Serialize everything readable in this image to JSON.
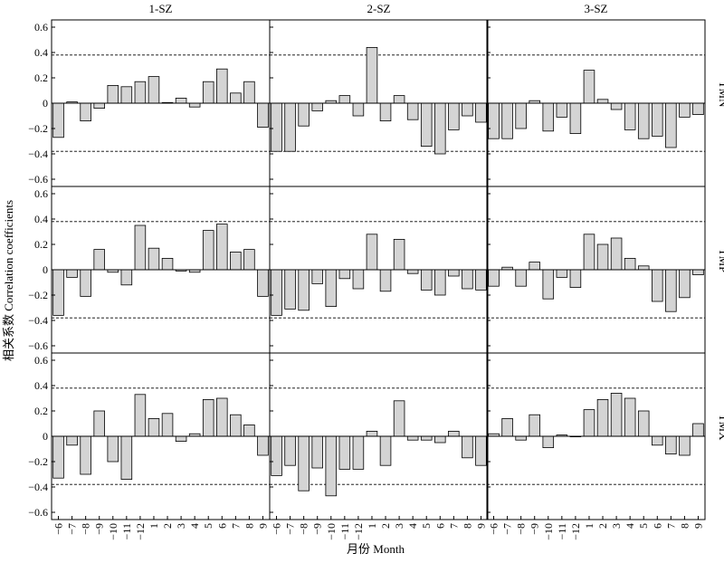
{
  "chart_data": {
    "type": "bar",
    "columns": [
      "1-SZ",
      "2-SZ",
      "3-SZ"
    ],
    "rows": [
      "TMN",
      "TMP",
      "TMX"
    ],
    "categories": [
      "−6",
      "−7",
      "−8",
      "−9",
      "−10",
      "−11",
      "−12",
      "1",
      "2",
      "3",
      "4",
      "5",
      "6",
      "7",
      "8",
      "9"
    ],
    "ylim": [
      -0.6,
      0.6
    ],
    "yticks": [
      "0.6",
      "0.4",
      "0.2",
      "0",
      "−0.2",
      "−0.4",
      "−0.6"
    ],
    "significance": [
      0.38,
      -0.38
    ],
    "xlabel": "月份 Month",
    "ylabel": "相关系数 Correlation coefficients",
    "panels": [
      {
        "column": "1-SZ",
        "row": "TMN",
        "values": [
          -0.27,
          0.01,
          -0.14,
          -0.04,
          0.14,
          0.13,
          0.17,
          0.21,
          0.005,
          0.04,
          -0.03,
          0.17,
          0.27,
          0.08,
          0.17,
          -0.19
        ]
      },
      {
        "column": "2-SZ",
        "row": "TMN",
        "values": [
          -0.38,
          -0.38,
          -0.18,
          -0.06,
          0.02,
          0.06,
          -0.1,
          0.44,
          -0.14,
          0.06,
          -0.13,
          -0.34,
          -0.4,
          -0.21,
          -0.1,
          -0.15
        ]
      },
      {
        "column": "3-SZ",
        "row": "TMN",
        "values": [
          -0.28,
          -0.28,
          -0.2,
          0.02,
          -0.22,
          -0.11,
          -0.24,
          0.26,
          0.03,
          -0.05,
          -0.21,
          -0.28,
          -0.26,
          -0.35,
          -0.11,
          -0.09
        ]
      },
      {
        "column": "1-SZ",
        "row": "TMP",
        "values": [
          -0.36,
          -0.06,
          -0.21,
          0.16,
          -0.02,
          -0.12,
          0.35,
          0.17,
          0.09,
          -0.01,
          -0.02,
          0.31,
          0.36,
          0.14,
          0.16,
          -0.21
        ]
      },
      {
        "column": "2-SZ",
        "row": "TMP",
        "values": [
          -0.36,
          -0.31,
          -0.32,
          -0.11,
          -0.29,
          -0.07,
          -0.15,
          0.28,
          -0.17,
          0.24,
          -0.03,
          -0.16,
          -0.2,
          -0.05,
          -0.15,
          -0.16
        ]
      },
      {
        "column": "3-SZ",
        "row": "TMP",
        "values": [
          -0.13,
          0.02,
          -0.13,
          0.06,
          -0.23,
          -0.06,
          -0.14,
          0.28,
          0.2,
          0.25,
          0.09,
          0.03,
          -0.25,
          -0.33,
          -0.22,
          -0.04
        ]
      },
      {
        "column": "1-SZ",
        "row": "TMX",
        "values": [
          -0.33,
          -0.07,
          -0.3,
          0.2,
          -0.2,
          -0.34,
          0.33,
          0.14,
          0.18,
          -0.04,
          0.02,
          0.29,
          0.3,
          0.17,
          0.09,
          -0.15
        ]
      },
      {
        "column": "2-SZ",
        "row": "TMX",
        "values": [
          -0.31,
          -0.23,
          -0.43,
          -0.25,
          -0.47,
          -0.26,
          -0.26,
          0.04,
          -0.23,
          0.28,
          -0.03,
          -0.03,
          -0.05,
          0.04,
          -0.17,
          -0.23
        ]
      },
      {
        "column": "3-SZ",
        "row": "TMX",
        "values": [
          0.02,
          0.14,
          -0.03,
          0.17,
          -0.09,
          0.01,
          0.0,
          0.21,
          0.29,
          0.34,
          0.3,
          0.2,
          -0.07,
          -0.14,
          -0.15,
          0.1
        ]
      }
    ]
  }
}
